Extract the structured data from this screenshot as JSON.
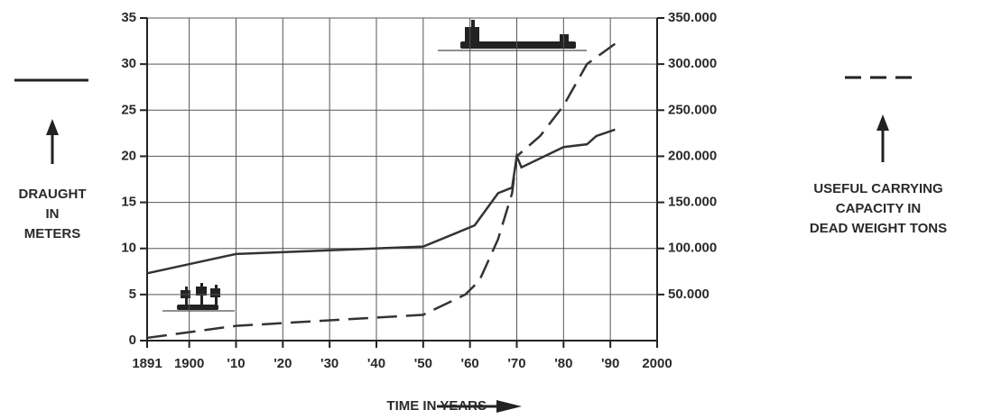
{
  "chart_data": {
    "type": "line",
    "x": [],
    "xlabel": "TIME IN YEARS",
    "ylabel": [
      "DRAUGHT",
      "IN",
      "METERS"
    ],
    "y2label": [
      "USEFUL CARRYING",
      "CAPACITY IN",
      "DEAD WEIGHT TONS"
    ],
    "xlim": [
      1891,
      2000
    ],
    "xticks": [
      {
        "value": 1891,
        "label": "1891"
      },
      1900,
      {
        "value": 1910,
        "label": "'10"
      },
      {
        "value": 1920,
        "label": "'20"
      },
      {
        "value": 1930,
        "label": "'30"
      },
      {
        "value": 1940,
        "label": "'40"
      },
      {
        "value": 1950,
        "label": "'50"
      },
      {
        "value": 1960,
        "label": "'60"
      },
      {
        "value": 1970,
        "label": "'70"
      },
      {
        "value": 1980,
        "label": "'80"
      },
      {
        "value": 1990,
        "label": "'90"
      },
      2000
    ],
    "ylim": [
      0,
      35
    ],
    "yticks": [
      0,
      5,
      10,
      15,
      20,
      25,
      30,
      35
    ],
    "y2lim": [
      0,
      350000
    ],
    "y2ticks": [
      {
        "value": 50000,
        "label": "50.000"
      },
      {
        "value": 100000,
        "label": "100.000"
      },
      {
        "value": 150000,
        "label": "150.000"
      },
      {
        "value": 200000,
        "label": "200.000"
      },
      {
        "value": 250000,
        "label": "250.000"
      },
      {
        "value": 300000,
        "label": "300.000"
      },
      {
        "value": 350000,
        "label": "350.000"
      }
    ],
    "grid": true,
    "series": [
      {
        "color": "#333333",
        "style": "solid",
        "x": [
          1891,
          1910,
          1950,
          1961,
          1966,
          1969,
          1970,
          1971,
          1980,
          1985,
          1987,
          1991
        ],
        "values": [
          7.3,
          9.4,
          10.2,
          12.5,
          16,
          16.6,
          20,
          18.8,
          21,
          21.3,
          22.2,
          22.9
        ]
      },
      {
        "color": "#333333",
        "style": "dashed",
        "axis": "y2",
        "x": [
          1891,
          1910,
          1950,
          1959,
          1962,
          1966,
          1969,
          1970,
          1975,
          1980,
          1985,
          1991
        ],
        "values": [
          3000,
          16000,
          28000,
          50000,
          65000,
          110000,
          160000,
          200000,
          222000,
          255000,
          300000,
          322000
        ]
      }
    ]
  }
}
